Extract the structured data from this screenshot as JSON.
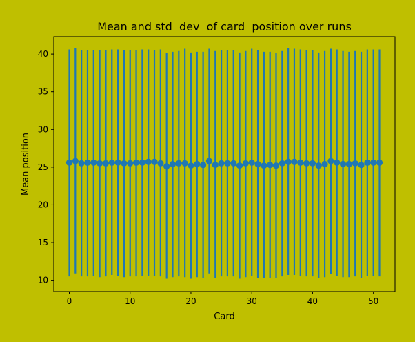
{
  "chart_data": {
    "type": "scatter",
    "title": "Mean and std  dev  of card  position over runs",
    "xlabel": "Card",
    "ylabel": "Mean position",
    "xlim": [
      -2.55,
      53.55
    ],
    "ylim": [
      8.5,
      42.3
    ],
    "xticks": [
      0,
      10,
      20,
      30,
      40,
      50
    ],
    "yticks": [
      10,
      15,
      20,
      25,
      30,
      35,
      40
    ],
    "grid": false,
    "legend": "none",
    "marker_color": "#1f77b4",
    "background_color": "#bfbf00",
    "plot_background_color": "#bfbf00",
    "series": [
      {
        "x": [
          0,
          1,
          2,
          3,
          4,
          5,
          6,
          7,
          8,
          9,
          10,
          11,
          12,
          13,
          14,
          15,
          16,
          17,
          18,
          19,
          20,
          21,
          22,
          23,
          24,
          25,
          26,
          27,
          28,
          29,
          30,
          31,
          32,
          33,
          34,
          35,
          36,
          37,
          38,
          39,
          40,
          41,
          42,
          43,
          44,
          45,
          46,
          47,
          48,
          49,
          50,
          51
        ],
        "y": [
          25.6,
          25.8,
          25.5,
          25.6,
          25.6,
          25.5,
          25.5,
          25.6,
          25.6,
          25.5,
          25.5,
          25.6,
          25.6,
          25.7,
          25.7,
          25.5,
          25.1,
          25.4,
          25.5,
          25.5,
          25.2,
          25.4,
          25.3,
          25.8,
          25.3,
          25.5,
          25.5,
          25.5,
          25.2,
          25.5,
          25.6,
          25.4,
          25.2,
          25.3,
          25.2,
          25.5,
          25.7,
          25.7,
          25.6,
          25.5,
          25.5,
          25.2,
          25.4,
          25.8,
          25.6,
          25.4,
          25.4,
          25.5,
          25.3,
          25.6,
          25.6,
          25.6
        ],
        "yerr_low": [
          10.5,
          10.9,
          10.5,
          10.5,
          10.6,
          10.4,
          10.5,
          10.7,
          10.6,
          10.4,
          10.5,
          10.5,
          10.6,
          10.6,
          10.6,
          10.5,
          10.2,
          10.4,
          10.5,
          10.4,
          10.2,
          10.4,
          10.3,
          10.9,
          10.3,
          10.5,
          10.5,
          10.5,
          10.2,
          10.4,
          10.6,
          10.3,
          10.3,
          10.3,
          10.3,
          10.5,
          10.7,
          10.7,
          10.6,
          10.5,
          10.5,
          10.3,
          10.4,
          10.8,
          10.6,
          10.4,
          10.4,
          10.5,
          10.3,
          10.6,
          10.6,
          10.5
        ],
        "yerr_high": [
          40.6,
          40.8,
          40.5,
          40.5,
          40.5,
          40.5,
          40.5,
          40.6,
          40.6,
          40.5,
          40.5,
          40.5,
          40.6,
          40.6,
          40.5,
          40.6,
          40.1,
          40.3,
          40.4,
          40.7,
          40.2,
          40.3,
          40.3,
          40.7,
          40.4,
          40.5,
          40.5,
          40.5,
          40.2,
          40.4,
          40.7,
          40.5,
          40.3,
          40.3,
          40.1,
          40.4,
          40.8,
          40.7,
          40.6,
          40.5,
          40.5,
          40.2,
          40.4,
          40.7,
          40.6,
          40.4,
          40.3,
          40.4,
          40.3,
          40.6,
          40.6,
          40.6
        ]
      }
    ]
  }
}
